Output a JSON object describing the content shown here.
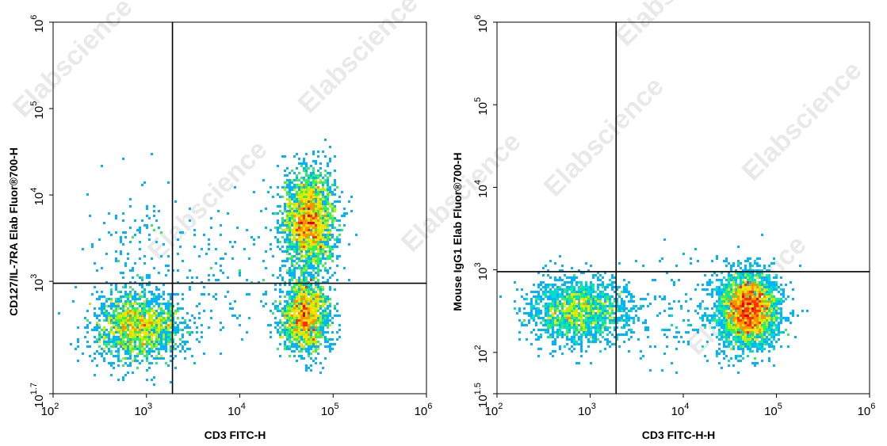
{
  "watermark": "Elabscience",
  "watermark_mark": "®",
  "chart_data": [
    {
      "type": "scatter",
      "subtype": "flow-cytometry-density-plot",
      "xlabel": "CD3 FITC-H",
      "ylabel": "CD127/IL-7RA Elab Fluor®700-H",
      "x_scale": "log",
      "y_scale": "log",
      "xlim": [
        100,
        1000000
      ],
      "ylim": [
        50,
        1000000
      ],
      "x_ticks": [
        {
          "value": 100,
          "base": "10",
          "exp": "2"
        },
        {
          "value": 1000,
          "base": "10",
          "exp": "3"
        },
        {
          "value": 10000,
          "base": "10",
          "exp": "4"
        },
        {
          "value": 100000,
          "base": "10",
          "exp": "5"
        },
        {
          "value": 1000000,
          "base": "10",
          "exp": "6"
        }
      ],
      "y_ticks": [
        {
          "value": 50,
          "base": "10",
          "exp": "1.7"
        },
        {
          "value": 1000,
          "base": "10",
          "exp": "3"
        },
        {
          "value": 10000,
          "base": "10",
          "exp": "4"
        },
        {
          "value": 100000,
          "base": "10",
          "exp": "5"
        },
        {
          "value": 1000000,
          "base": "10",
          "exp": "6"
        }
      ],
      "quadrant_gate": {
        "x": 1900,
        "y": 950
      },
      "populations": [
        {
          "x_center": 800,
          "y_center": 300,
          "x_spread_decades": 0.24,
          "y_spread_decades": 0.2,
          "events": 1700
        },
        {
          "x_center": 55000,
          "y_center": 5000,
          "x_spread_decades": 0.14,
          "y_spread_decades": 0.28,
          "events": 2300
        },
        {
          "x_center": 50000,
          "y_center": 400,
          "x_spread_decades": 0.13,
          "y_spread_decades": 0.22,
          "events": 1600
        },
        {
          "x_center": 900,
          "y_center": 2500,
          "x_spread_decades": 0.3,
          "y_spread_decades": 0.35,
          "events": 120
        },
        {
          "x_center": 8000,
          "y_center": 1200,
          "x_spread_decades": 0.45,
          "y_spread_decades": 0.45,
          "events": 160
        }
      ]
    },
    {
      "type": "scatter",
      "subtype": "flow-cytometry-density-plot",
      "xlabel": "CD3 FITC-H-H",
      "ylabel": "Mouse IgG1 Elab Fluor®700-H",
      "x_scale": "log",
      "y_scale": "log",
      "xlim": [
        100,
        1000000
      ],
      "ylim": [
        31.6,
        1000000
      ],
      "x_ticks": [
        {
          "value": 100,
          "base": "10",
          "exp": "2"
        },
        {
          "value": 1000,
          "base": "10",
          "exp": "3"
        },
        {
          "value": 10000,
          "base": "10",
          "exp": "4"
        },
        {
          "value": 100000,
          "base": "10",
          "exp": "5"
        },
        {
          "value": 1000000,
          "base": "10",
          "exp": "6"
        }
      ],
      "y_ticks": [
        {
          "value": 31.6,
          "base": "10",
          "exp": "1.5"
        },
        {
          "value": 100,
          "base": "10",
          "exp": "2"
        },
        {
          "value": 1000,
          "base": "10",
          "exp": "3"
        },
        {
          "value": 10000,
          "base": "10",
          "exp": "4"
        },
        {
          "value": 100000,
          "base": "10",
          "exp": "5"
        },
        {
          "value": 1000000,
          "base": "10",
          "exp": "6"
        }
      ],
      "quadrant_gate": {
        "x": 1900,
        "y": 950
      },
      "populations": [
        {
          "x_center": 750,
          "y_center": 320,
          "x_spread_decades": 0.26,
          "y_spread_decades": 0.2,
          "events": 1700
        },
        {
          "x_center": 50000,
          "y_center": 330,
          "x_spread_decades": 0.16,
          "y_spread_decades": 0.22,
          "events": 3400
        },
        {
          "x_center": 8000,
          "y_center": 300,
          "x_spread_decades": 0.45,
          "y_spread_decades": 0.3,
          "events": 200
        }
      ]
    }
  ]
}
